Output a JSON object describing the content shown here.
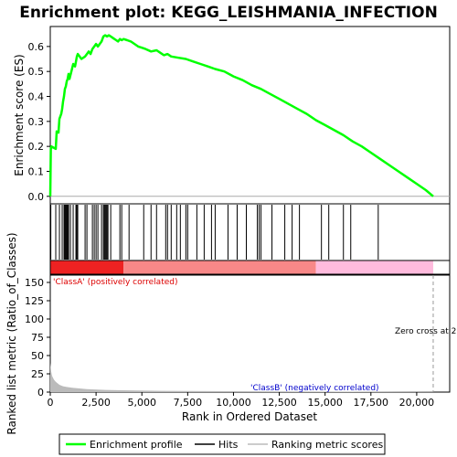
{
  "chart_data": {
    "type": "line",
    "title": "Enrichment plot: KEGG_LEISHMANIA_INFECTION",
    "top_panel": {
      "ylabel": "Enrichment score (ES)",
      "ylim": [
        -0.03,
        0.68
      ],
      "yticks": [
        "0.0",
        "0.1",
        "0.2",
        "0.3",
        "0.4",
        "0.5",
        "0.6"
      ],
      "ytick_values": [
        0.0,
        0.1,
        0.2,
        0.3,
        0.4,
        0.5,
        0.6
      ],
      "xlim": [
        0,
        21800
      ],
      "series": [
        {
          "name": "Enrichment profile",
          "color": "#00ff00",
          "x": [
            0,
            30,
            60,
            300,
            350,
            450,
            500,
            600,
            650,
            700,
            750,
            800,
            850,
            900,
            950,
            1000,
            1050,
            1150,
            1250,
            1350,
            1400,
            1450,
            1500,
            1600,
            1700,
            1900,
            2000,
            2100,
            2200,
            2300,
            2400,
            2500,
            2600,
            2700,
            2800,
            2900,
            3000,
            3100,
            3200,
            3300,
            3400,
            3500,
            3600,
            3700,
            3800,
            3900,
            4000,
            4200,
            4400,
            4600,
            4800,
            5000,
            5200,
            5500,
            5800,
            6000,
            6200,
            6400,
            6600,
            7000,
            7400,
            7800,
            8200,
            8600,
            9000,
            9500,
            10000,
            10500,
            11000,
            11500,
            12000,
            12500,
            13000,
            13500,
            14000,
            14500,
            15000,
            15500,
            16000,
            16500,
            17000,
            17500,
            18000,
            18500,
            19000,
            19500,
            20000,
            20500,
            20900
          ],
          "y": [
            0.0,
            0.19,
            0.2,
            0.19,
            0.26,
            0.255,
            0.31,
            0.33,
            0.35,
            0.38,
            0.4,
            0.43,
            0.44,
            0.46,
            0.47,
            0.49,
            0.47,
            0.5,
            0.53,
            0.52,
            0.54,
            0.56,
            0.57,
            0.56,
            0.55,
            0.56,
            0.57,
            0.58,
            0.57,
            0.59,
            0.6,
            0.61,
            0.6,
            0.61,
            0.62,
            0.64,
            0.645,
            0.64,
            0.645,
            0.64,
            0.635,
            0.63,
            0.625,
            0.62,
            0.63,
            0.625,
            0.63,
            0.625,
            0.62,
            0.61,
            0.6,
            0.595,
            0.59,
            0.58,
            0.585,
            0.575,
            0.565,
            0.57,
            0.56,
            0.555,
            0.55,
            0.54,
            0.53,
            0.52,
            0.51,
            0.5,
            0.48,
            0.465,
            0.445,
            0.43,
            0.41,
            0.39,
            0.37,
            0.35,
            0.33,
            0.305,
            0.285,
            0.265,
            0.245,
            0.22,
            0.2,
            0.175,
            0.15,
            0.125,
            0.1,
            0.075,
            0.05,
            0.025,
            0.0
          ]
        }
      ]
    },
    "hits": {
      "name": "Hits",
      "color": "#000000",
      "positions": [
        30,
        300,
        500,
        650,
        750,
        800,
        850,
        900,
        950,
        1000,
        1100,
        1250,
        1400,
        1450,
        1500,
        1900,
        2000,
        2300,
        2400,
        2500,
        2600,
        2800,
        2900,
        2950,
        3000,
        3050,
        3100,
        3150,
        3300,
        3800,
        3900,
        4300,
        5100,
        5500,
        5800,
        6300,
        6400,
        6600,
        6900,
        7100,
        7400,
        7500,
        8000,
        8400,
        8800,
        9000,
        9700,
        10200,
        10700,
        11300,
        11400,
        11500,
        12100,
        12800,
        13200,
        13600,
        14800,
        15200,
        16000,
        16400,
        17900
      ]
    },
    "rank_bar": {
      "segments": [
        {
          "from": 0,
          "to": 4000,
          "color": "#ee2222"
        },
        {
          "from": 4000,
          "to": 14500,
          "color": "#f88888"
        },
        {
          "from": 14500,
          "to": 20900,
          "color": "#ffbbdd"
        }
      ]
    },
    "bottom_panel": {
      "ylabel": "Ranked list metric (Ratio_of_Classes)",
      "xlabel": "Rank in Ordered Dataset",
      "ylim": [
        0,
        160
      ],
      "yticks": [
        "0",
        "25",
        "50",
        "75",
        "100",
        "125",
        "150"
      ],
      "ytick_values": [
        0,
        25,
        50,
        75,
        100,
        125,
        150
      ],
      "xticks": [
        "0",
        "2,500",
        "5,000",
        "7,500",
        "10,000",
        "12,500",
        "15,000",
        "17,500",
        "20,000"
      ],
      "xtick_values": [
        0,
        2500,
        5000,
        7500,
        10000,
        12500,
        15000,
        17500,
        20000
      ],
      "xlim": [
        0,
        21800
      ],
      "metric_name": "Ranking metric scores",
      "metric_color": "#bbbbbb",
      "metric_x": [
        0,
        50,
        100,
        200,
        300,
        400,
        500,
        700,
        900,
        1200,
        1600,
        2000,
        3000,
        4000,
        6000,
        10000,
        14500,
        20900
      ],
      "metric_y": [
        40,
        28,
        22,
        17,
        14,
        12,
        10,
        8,
        7,
        6,
        5,
        4,
        3,
        2.5,
        1.8,
        1.2,
        0.8,
        0.3
      ],
      "class_a_label": "'ClassA' (positively correlated)",
      "class_a_color": "#dd0000",
      "class_b_label": "'ClassB' (negatively correlated)",
      "class_b_color": "#0000cc",
      "zero_cross_label": "Zero cross at 2",
      "zero_cross_x": 20900
    },
    "legend": {
      "placement": "bottom",
      "items": [
        {
          "label": "Enrichment profile",
          "color": "#00ff00"
        },
        {
          "label": "Hits",
          "color": "#000000"
        },
        {
          "label": "Ranking metric scores",
          "color": "#bbbbbb"
        }
      ]
    }
  }
}
